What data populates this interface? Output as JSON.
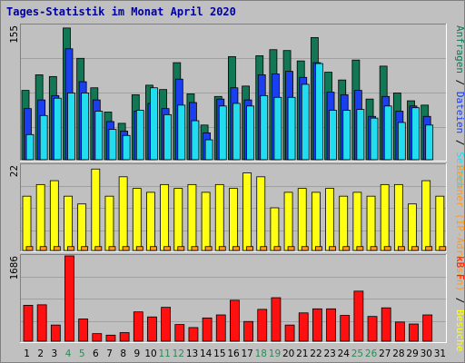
{
  "colors": {
    "background": "#c0c0c0",
    "plot_background": "#c0c0c0",
    "title": "#0000a0",
    "gridline": "#a0a0a0",
    "hits": "#117755",
    "files": "#1a3ff0",
    "pages": "#22ddf0",
    "visits": "#ffff11",
    "sites": "#ff9922",
    "kbytes": "#ff1010",
    "weekend_label": "#2b8b55",
    "day_label": "#000000"
  },
  "chart_data": {
    "type": "bar",
    "title": "Tages-Statistik im Monat April 2020",
    "categories": [
      "1",
      "2",
      "3",
      "4",
      "5",
      "6",
      "7",
      "8",
      "9",
      "10",
      "11",
      "12",
      "13",
      "14",
      "15",
      "16",
      "17",
      "18",
      "19",
      "20",
      "21",
      "22",
      "23",
      "24",
      "25",
      "26",
      "27",
      "28",
      "29",
      "30",
      "31"
    ],
    "weekend_days": [
      "4",
      "5",
      "11",
      "12",
      "18",
      "19",
      "25",
      "26"
    ],
    "panels": [
      {
        "name": "requests",
        "ymax_label": "155",
        "ylim": [
          0,
          155
        ],
        "legend": [
          {
            "text": "Anfragen",
            "color": "#117755"
          },
          {
            "text": " / ",
            "color": "#000000"
          },
          {
            "text": "Dateien",
            "color": "#1a3ff0"
          },
          {
            "text": " / ",
            "color": "#000000"
          },
          {
            "text": "Seiten",
            "color": "#22ddf0"
          }
        ],
        "series": [
          {
            "name": "Anfragen",
            "key": "hits",
            "values": [
              80,
              98,
              96,
              152,
              117,
              83,
              55,
              42,
              75,
              86,
              81,
              112,
              76,
              40,
              73,
              119,
              85,
              120,
              127,
              126,
              114,
              141,
              101,
              92,
              115,
              70,
              108,
              77,
              68,
              63,
              null
            ]
          },
          {
            "name": "Dateien",
            "key": "files",
            "values": [
              59,
              69,
              74,
              128,
              90,
              69,
              44,
              33,
              56,
              65,
              59,
              93,
              66,
              31,
              70,
              83,
              69,
              98,
              99,
              102,
              95,
              112,
              78,
              75,
              80,
              50,
              73,
              56,
              62,
              50,
              null
            ]
          },
          {
            "name": "Seiten",
            "key": "pages",
            "values": [
              29,
              51,
              71,
              77,
              77,
              56,
              35,
              28,
              57,
              83,
              52,
              63,
              45,
              23,
              62,
              65,
              62,
              74,
              72,
              72,
              87,
              111,
              57,
              57,
              58,
              48,
              62,
              43,
              60,
              40,
              null
            ]
          }
        ]
      },
      {
        "name": "visits",
        "ymax_label": "22",
        "ylim": [
          0,
          22
        ],
        "legend": [
          {
            "text": "Rechner (IP-Adressen)",
            "color": "#ff9922"
          },
          {
            "text": " / ",
            "color": "#000000"
          },
          {
            "text": "Besuche",
            "color": "#ffff11"
          }
        ],
        "series": [
          {
            "name": "Besuche",
            "key": "visits",
            "values": [
              14,
              17,
              18,
              14,
              12,
              21,
              14,
              19,
              16,
              15,
              17,
              16,
              17,
              15,
              17,
              16,
              20,
              19,
              11,
              15,
              16,
              15,
              16,
              14,
              15,
              14,
              17,
              17,
              12,
              18,
              14
            ]
          },
          {
            "name": "Rechner",
            "key": "sites",
            "values": [
              1,
              1,
              1,
              1,
              1,
              1,
              1,
              1,
              1,
              1,
              1,
              1,
              1,
              1,
              1,
              1,
              1,
              1,
              1,
              1,
              1,
              1,
              1,
              1,
              1,
              1,
              1,
              1,
              1,
              1,
              1
            ]
          }
        ]
      },
      {
        "name": "kbytes",
        "ymax_label": "1686",
        "ylim": [
          0,
          1686
        ],
        "legend": [
          {
            "text": "kB F",
            "color": "#ff1010"
          }
        ],
        "series": [
          {
            "name": "kB F",
            "key": "kbytes",
            "values": [
              710,
              720,
              320,
              1686,
              440,
              150,
              120,
              170,
              580,
              480,
              670,
              330,
              270,
              460,
              520,
              810,
              390,
              630,
              860,
              320,
              560,
              640,
              640,
              510,
              990,
              490,
              660,
              380,
              340,
              520,
              null
            ]
          }
        ]
      }
    ]
  }
}
